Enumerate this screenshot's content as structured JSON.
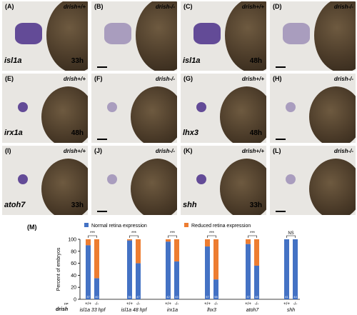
{
  "panels": [
    {
      "letter": "(A)",
      "genotype": "drish+/+",
      "gene": "isl1a",
      "time": "33h"
    },
    {
      "letter": "(B)",
      "genotype": "drish-/-",
      "gene": "",
      "time": ""
    },
    {
      "letter": "(C)",
      "genotype": "drish+/+",
      "gene": "isl1a",
      "time": "48h"
    },
    {
      "letter": "(D)",
      "genotype": "drish-/-",
      "gene": "",
      "time": ""
    },
    {
      "letter": "(E)",
      "genotype": "drish+/+",
      "gene": "irx1a",
      "time": "48h"
    },
    {
      "letter": "(F)",
      "genotype": "drish-/-",
      "gene": "",
      "time": ""
    },
    {
      "letter": "(G)",
      "genotype": "drish+/+",
      "gene": "lhx3",
      "time": "48h"
    },
    {
      "letter": "(H)",
      "genotype": "drish-/-",
      "gene": "",
      "time": ""
    },
    {
      "letter": "(I)",
      "genotype": "drish+/+",
      "gene": "atoh7",
      "time": "33h"
    },
    {
      "letter": "(J)",
      "genotype": "drish-/-",
      "gene": "",
      "time": ""
    },
    {
      "letter": "(K)",
      "genotype": "drish+/+",
      "gene": "shh",
      "time": "33h"
    },
    {
      "letter": "(L)",
      "genotype": "drish-/-",
      "gene": "",
      "time": ""
    }
  ],
  "chart_data": {
    "type": "bar",
    "panel_label": "(M)",
    "legend": [
      {
        "name": "Normal retina expression",
        "color": "#4472c4"
      },
      {
        "name": "Reduced retina expression",
        "color": "#ed7d31"
      }
    ],
    "ylabel": "Percent of embryos",
    "ylim": [
      0,
      100
    ],
    "yticks": [
      "0",
      "20",
      "40",
      "60",
      "80",
      "100"
    ],
    "row_label_n": "n=",
    "row_label_drish": "drish",
    "groups": [
      {
        "gene": "isl1a 33 hpf",
        "bars": [
          {
            "geno": "+/+",
            "normal": 90,
            "n": "37"
          },
          {
            "geno": "-/-",
            "normal": 35,
            "n": "40"
          }
        ],
        "sig": "***"
      },
      {
        "gene": "isl1a 48 hpf",
        "bars": [
          {
            "geno": "+/+",
            "normal": 98,
            "n": "36"
          },
          {
            "geno": "-/-",
            "normal": 60,
            "n": "47"
          }
        ],
        "sig": "***"
      },
      {
        "gene": "irx1a",
        "bars": [
          {
            "geno": "+/+",
            "normal": 96,
            "n": "42"
          },
          {
            "geno": "-/-",
            "normal": 63,
            "n": "43"
          }
        ],
        "sig": "***"
      },
      {
        "gene": "lhx3",
        "bars": [
          {
            "geno": "+/+",
            "normal": 88,
            "n": "57"
          },
          {
            "geno": "-/-",
            "normal": 33,
            "n": "58"
          }
        ],
        "sig": "***"
      },
      {
        "gene": "atoh7",
        "bars": [
          {
            "geno": "+/+",
            "normal": 92,
            "n": "37"
          },
          {
            "geno": "-/-",
            "normal": 56,
            "n": "48"
          }
        ],
        "sig": "***"
      },
      {
        "gene": "shh",
        "bars": [
          {
            "geno": "+/+",
            "normal": 100,
            "n": "41"
          },
          {
            "geno": "-/-",
            "normal": 100,
            "n": "44"
          }
        ],
        "sig": "NS"
      }
    ]
  }
}
